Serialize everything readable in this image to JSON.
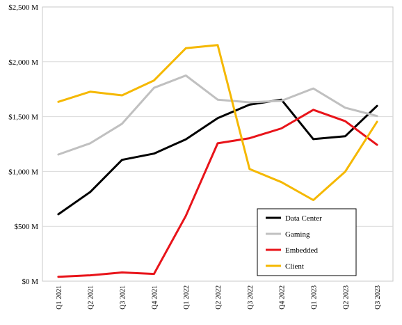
{
  "chart_data": {
    "type": "line",
    "title": "",
    "xlabel": "",
    "ylabel": "",
    "categories": [
      "Q1 2021",
      "Q2 2021",
      "Q3 2021",
      "Q4 2021",
      "Q1 2022",
      "Q2 2022",
      "Q3 2022",
      "Q4 2022",
      "Q1 2023",
      "Q2 2023",
      "Q3 2023"
    ],
    "ylim": [
      0,
      2500
    ],
    "yticks": [
      0,
      500,
      1000,
      1500,
      2000,
      2500
    ],
    "ytick_labels": [
      "$0 M",
      "$500 M",
      "$1,000 M",
      "$1,500 M",
      "$2,000 M",
      "$2,500 M"
    ],
    "grid": true,
    "legend_position": "bottom-right",
    "series": [
      {
        "name": "Data Center",
        "color": "#000000",
        "values": [
          610,
          813,
          1106,
          1163,
          1293,
          1486,
          1609,
          1655,
          1295,
          1321,
          1598
        ]
      },
      {
        "name": "Gaming",
        "color": "#c0c0c0",
        "values": [
          1155,
          1257,
          1435,
          1763,
          1875,
          1655,
          1631,
          1644,
          1757,
          1581,
          1506
        ]
      },
      {
        "name": "Embedded",
        "color": "#e8141a",
        "values": [
          40,
          53,
          79,
          66,
          595,
          1257,
          1303,
          1393,
          1562,
          1459,
          1243
        ]
      },
      {
        "name": "Client",
        "color": "#f5b800",
        "values": [
          1635,
          1727,
          1694,
          1830,
          2124,
          2152,
          1022,
          903,
          739,
          998,
          1453
        ]
      }
    ]
  }
}
